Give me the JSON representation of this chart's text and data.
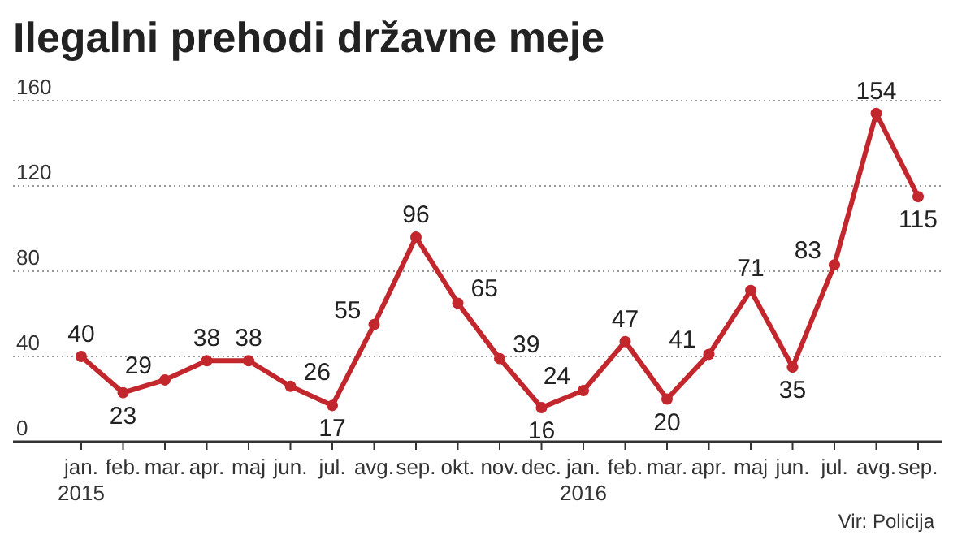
{
  "chart_data": {
    "type": "line",
    "title": "Ilegalni prehodi državne meje",
    "categories": [
      "jan. 2015",
      "feb.",
      "mar.",
      "apr.",
      "maj",
      "jun.",
      "jul.",
      "avg.",
      "sep.",
      "okt.",
      "nov.",
      "dec.",
      "jan. 2016",
      "feb.",
      "mar.",
      "apr.",
      "maj",
      "jun.",
      "jul.",
      "avg.",
      "sep."
    ],
    "series": [
      {
        "color": "#c1272d",
        "values": [
          40,
          23,
          29,
          38,
          38,
          26,
          17,
          55,
          96,
          65,
          39,
          16,
          24,
          47,
          20,
          41,
          71,
          35,
          83,
          154,
          115
        ]
      }
    ],
    "ylim": [
      0,
      160
    ],
    "yticks": [
      0,
      40,
      80,
      120,
      160
    ],
    "grid": "y",
    "marker": "circle",
    "line_style": "solid",
    "data_labels": true,
    "annotations": [
      "Vir: Policija"
    ]
  }
}
